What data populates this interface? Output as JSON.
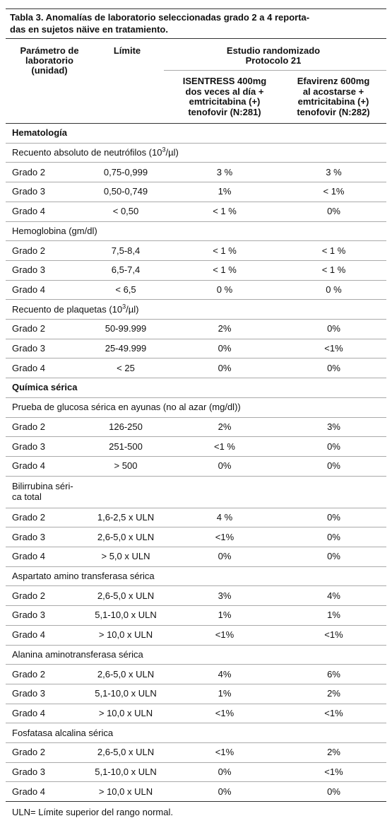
{
  "title": [
    "Tabla 3. Anomalías de laboratorio seleccionadas grado 2 a 4 reporta-",
    "das en sujetos näive en tratamiento."
  ],
  "header": {
    "parameter": [
      "Parámetro de",
      "laboratorio",
      "(unidad)"
    ],
    "limit": "Límite",
    "study": [
      "Estudio randomizado",
      "Protocolo 21"
    ],
    "columns": [
      [
        "ISENTRESS 400mg",
        "dos veces al día +",
        "emtricitabina (+)",
        "tenofovir (N:281)"
      ],
      [
        "Efavirenz 600mg",
        "al acostarse +",
        "emtricitabina (+)",
        "tenofovir (N:282)"
      ]
    ]
  },
  "sections": [
    {
      "title": "Hematología",
      "groups": [
        {
          "label_parts": [
            "Recuento absoluto de neutrófilos (10",
            "3",
            "/µl)"
          ],
          "rows": [
            [
              "Grado 2",
              "0,75-0,999",
              "3 %",
              "3 %"
            ],
            [
              "Grado 3",
              "0,50-0,749",
              "1%",
              "< 1%"
            ],
            [
              "Grado 4",
              "< 0,50",
              "< 1 %",
              "0%"
            ]
          ]
        },
        {
          "label_parts": [
            "Hemoglobina (gm/dl)"
          ],
          "rows": [
            [
              "Grado 2",
              "7,5-8,4",
              "< 1 %",
              "< 1 %"
            ],
            [
              "Grado 3",
              "6,5-7,4",
              "< 1 %",
              "< 1 %"
            ],
            [
              "Grado 4",
              "< 6,5",
              "0 %",
              "0 %"
            ]
          ]
        },
        {
          "label_parts": [
            "Recuento de plaquetas (10",
            "3",
            "/µl)"
          ],
          "rows": [
            [
              "Grado 2",
              "50-99.999",
              "2%",
              "0%"
            ],
            [
              "Grado 3",
              "25-49.999",
              "0%",
              "<1%"
            ],
            [
              "Grado 4",
              "< 25",
              "0%",
              "0%"
            ]
          ]
        }
      ]
    },
    {
      "title": "Química sérica",
      "groups": [
        {
          "label_parts": [
            "Prueba de glucosa sérica en ayunas (no al azar (mg/dl))"
          ],
          "rows": [
            [
              "Grado 2",
              "126-250",
              "2%",
              "3%"
            ],
            [
              "Grado 3",
              "251-500",
              "<1 %",
              "0%"
            ],
            [
              "Grado 4",
              "> 500",
              "0%",
              "0%"
            ]
          ]
        },
        {
          "label_lines": [
            "Bilirrubina séri-",
            "ca total"
          ],
          "rows": [
            [
              "Grado 2",
              "1,6-2,5 x ULN",
              "4 %",
              "0%"
            ],
            [
              "Grado 3",
              "2,6-5,0 x ULN",
              "<1%",
              "0%"
            ],
            [
              "Grado 4",
              "> 5,0 x ULN",
              "0%",
              "0%"
            ]
          ]
        },
        {
          "label_parts": [
            "Aspartato amino transferasa sérica"
          ],
          "rows": [
            [
              "Grado 2",
              "2,6-5,0 x ULN",
              "3%",
              "4%"
            ],
            [
              "Grado 3",
              "5,1-10,0 x ULN",
              "1%",
              "1%"
            ],
            [
              "Grado 4",
              "> 10,0 x ULN",
              "<1%",
              "<1%"
            ]
          ]
        },
        {
          "label_parts": [
            "Alanina aminotransferasa sérica"
          ],
          "rows": [
            [
              "Grado 2",
              "2,6-5,0 x ULN",
              "4%",
              "6%"
            ],
            [
              "Grado 3",
              "5,1-10,0 x ULN",
              "1%",
              "2%"
            ],
            [
              "Grado 4",
              "> 10,0 x ULN",
              "<1%",
              "<1%"
            ]
          ]
        },
        {
          "label_parts": [
            "Fosfatasa alcalina sérica"
          ],
          "rows": [
            [
              "Grado 2",
              "2,6-5,0 x ULN",
              "<1%",
              "2%"
            ],
            [
              "Grado 3",
              "5,1-10,0 x ULN",
              "0%",
              "<1%"
            ],
            [
              "Grado 4",
              "> 10,0 x ULN",
              "0%",
              "0%"
            ]
          ]
        }
      ]
    }
  ],
  "footnote": "ULN= Límite superior del rango normal."
}
